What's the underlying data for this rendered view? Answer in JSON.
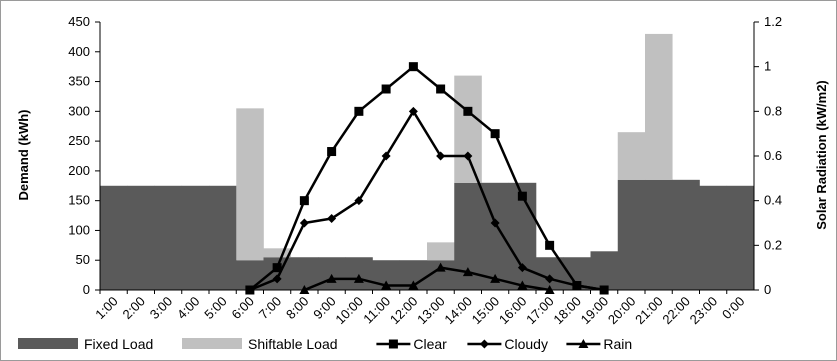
{
  "chart_data": {
    "type": "bar",
    "title": "",
    "categories": [
      "1:00",
      "2:00",
      "3:00",
      "4:00",
      "5:00",
      "6:00",
      "7:00",
      "8:00",
      "9:00",
      "10:00",
      "11:00",
      "12:00",
      "13:00",
      "14:00",
      "15:00",
      "16:00",
      "17:00",
      "18:00",
      "19:00",
      "20:00",
      "21:00",
      "22:00",
      "23:00",
      "0:00"
    ],
    "ylabel": "Demand  (kWh)",
    "y2label": "Solar Radiation  (kW/m2)",
    "ylim": [
      0,
      450
    ],
    "y2lim": [
      0,
      1.2
    ],
    "yticks": [
      "0",
      "50",
      "100",
      "150",
      "200",
      "250",
      "300",
      "350",
      "400",
      "450"
    ],
    "y2ticks": [
      "0",
      "0.2",
      "0.4",
      "0.6",
      "0.8",
      "1",
      "1.2"
    ],
    "grid": false,
    "legend_position": "bottom",
    "bar_series": [
      {
        "name": "Fixed Load",
        "color": "#5a5a5a",
        "values": [
          175,
          175,
          175,
          175,
          175,
          50,
          55,
          55,
          55,
          55,
          50,
          50,
          50,
          180,
          180,
          180,
          55,
          55,
          65,
          185,
          185,
          185,
          175,
          175
        ]
      },
      {
        "name": "Shiftable Load",
        "color": "#c0c0c0",
        "values": [
          0,
          0,
          0,
          0,
          0,
          255,
          15,
          0,
          0,
          0,
          0,
          0,
          30,
          180,
          0,
          0,
          0,
          0,
          0,
          80,
          245,
          0,
          0,
          0
        ]
      }
    ],
    "line_series": [
      {
        "name": "Clear",
        "marker": "square",
        "color": "#000000",
        "values": [
          null,
          null,
          null,
          null,
          null,
          0,
          0.1,
          0.4,
          0.62,
          0.8,
          0.9,
          1.0,
          0.9,
          0.8,
          0.7,
          0.42,
          0.2,
          0.02,
          0,
          null,
          null,
          null,
          null,
          null
        ]
      },
      {
        "name": "Cloudy",
        "marker": "diamond",
        "color": "#000000",
        "values": [
          null,
          null,
          null,
          null,
          null,
          0,
          0.05,
          0.3,
          0.32,
          0.4,
          0.6,
          0.8,
          0.6,
          0.6,
          0.3,
          0.1,
          0.05,
          0.02,
          0,
          null,
          null,
          null,
          null,
          null
        ]
      },
      {
        "name": "Rain",
        "marker": "triangle",
        "color": "#000000",
        "values": [
          null,
          null,
          null,
          null,
          null,
          null,
          null,
          0,
          0.05,
          0.05,
          0.02,
          0.02,
          0.1,
          0.08,
          0.05,
          0.02,
          0,
          null,
          null,
          null,
          null,
          null,
          null,
          null
        ]
      }
    ]
  }
}
